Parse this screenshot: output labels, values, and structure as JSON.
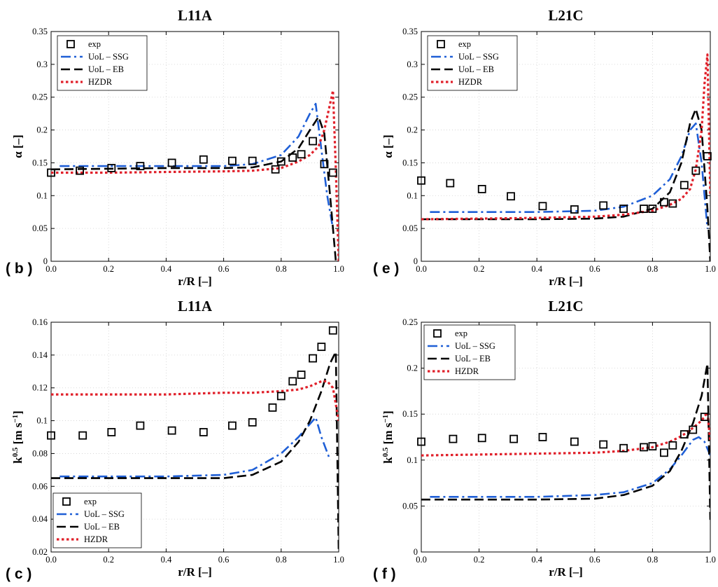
{
  "colors": {
    "exp": "#000000",
    "ssg": "#1f5fd6",
    "eb": "#000000",
    "hzdr": "#e0202a"
  },
  "chart_data": [
    {
      "type": "line",
      "panel": "(b)",
      "title": "L11A",
      "xlabel": "r/R [–]",
      "ylabel": "α [–]",
      "xlim": [
        0,
        1
      ],
      "ylim": [
        0,
        0.35
      ],
      "xticks": [
        "0.0",
        "0.2",
        "0.4",
        "0.6",
        "0.8",
        "1.0"
      ],
      "yticks": [
        "0",
        "0.05",
        "0.1",
        "0.15",
        "0.2",
        "0.25",
        "0.3",
        "0.35"
      ],
      "legend_pos": "top-left",
      "series": [
        {
          "name": "exp",
          "style": "square",
          "x": [
            0.0,
            0.1,
            0.21,
            0.31,
            0.42,
            0.53,
            0.63,
            0.7,
            0.78,
            0.8,
            0.84,
            0.87,
            0.91,
            0.95,
            0.98
          ],
          "y": [
            0.135,
            0.138,
            0.142,
            0.145,
            0.15,
            0.155,
            0.153,
            0.153,
            0.14,
            0.152,
            0.158,
            0.163,
            0.183,
            0.148,
            0.135
          ]
        },
        {
          "name": "UoL – SSG",
          "style": "dashdot",
          "x": [
            0.03,
            0.2,
            0.4,
            0.6,
            0.7,
            0.8,
            0.86,
            0.9,
            0.92,
            0.94,
            0.96,
            0.98
          ],
          "y": [
            0.145,
            0.145,
            0.145,
            0.145,
            0.148,
            0.162,
            0.19,
            0.225,
            0.24,
            0.17,
            0.1,
            0.05
          ]
        },
        {
          "name": "UoL – EB",
          "style": "dashed",
          "x": [
            0.0,
            0.2,
            0.4,
            0.6,
            0.7,
            0.8,
            0.86,
            0.9,
            0.93,
            0.95,
            0.97,
            0.99
          ],
          "y": [
            0.14,
            0.141,
            0.142,
            0.142,
            0.143,
            0.152,
            0.172,
            0.2,
            0.22,
            0.195,
            0.1,
            0.0
          ]
        },
        {
          "name": "HZDR",
          "style": "dotted",
          "x": [
            0.0,
            0.2,
            0.4,
            0.6,
            0.7,
            0.8,
            0.86,
            0.9,
            0.93,
            0.95,
            0.97,
            0.98,
            0.99,
            1.0
          ],
          "y": [
            0.135,
            0.135,
            0.136,
            0.137,
            0.138,
            0.142,
            0.152,
            0.162,
            0.175,
            0.2,
            0.24,
            0.26,
            0.14,
            0.0
          ]
        }
      ]
    },
    {
      "type": "line",
      "panel": "(e)",
      "title": "L21C",
      "xlabel": "r/R [–]",
      "ylabel": "α [–]",
      "xlim": [
        0,
        1
      ],
      "ylim": [
        0,
        0.35
      ],
      "xticks": [
        "0.0",
        "0.2",
        "0.4",
        "0.6",
        "0.8",
        "1.0"
      ],
      "yticks": [
        "0",
        "0.05",
        "0.1",
        "0.15",
        "0.2",
        "0.25",
        "0.3",
        "0.35"
      ],
      "legend_pos": "top-left",
      "series": [
        {
          "name": "exp",
          "style": "square",
          "x": [
            0.0,
            0.1,
            0.21,
            0.31,
            0.42,
            0.53,
            0.63,
            0.7,
            0.77,
            0.8,
            0.84,
            0.87,
            0.91,
            0.95,
            0.99
          ],
          "y": [
            0.123,
            0.119,
            0.11,
            0.099,
            0.084,
            0.079,
            0.085,
            0.08,
            0.08,
            0.08,
            0.09,
            0.088,
            0.116,
            0.138,
            0.16
          ]
        },
        {
          "name": "UoL – SSG",
          "style": "dashdot",
          "x": [
            0.03,
            0.2,
            0.4,
            0.6,
            0.7,
            0.8,
            0.86,
            0.9,
            0.93,
            0.95,
            0.97,
            0.99
          ],
          "y": [
            0.075,
            0.075,
            0.075,
            0.077,
            0.083,
            0.1,
            0.125,
            0.16,
            0.2,
            0.21,
            0.15,
            0.05
          ]
        },
        {
          "name": "UoL – EB",
          "style": "dashed",
          "x": [
            0.0,
            0.2,
            0.4,
            0.6,
            0.7,
            0.8,
            0.86,
            0.9,
            0.93,
            0.95,
            0.97,
            0.99,
            1.0
          ],
          "y": [
            0.064,
            0.064,
            0.064,
            0.065,
            0.068,
            0.08,
            0.105,
            0.15,
            0.21,
            0.232,
            0.2,
            0.08,
            0.0
          ]
        },
        {
          "name": "HZDR",
          "style": "dotted",
          "x": [
            0.0,
            0.2,
            0.4,
            0.6,
            0.7,
            0.8,
            0.86,
            0.9,
            0.93,
            0.95,
            0.97,
            0.98,
            0.99,
            1.0
          ],
          "y": [
            0.064,
            0.065,
            0.066,
            0.068,
            0.071,
            0.077,
            0.086,
            0.095,
            0.11,
            0.14,
            0.2,
            0.27,
            0.315,
            0.1
          ]
        }
      ]
    },
    {
      "type": "line",
      "panel": "(c)",
      "title": "L11A",
      "xlabel": "r/R [–]",
      "ylabel": "k^0.5 [m s^-1]",
      "ylabel_parts": {
        "base": "k",
        "exp1": "0.5",
        "unit": "[m s",
        "exp2": "−1",
        "close": "]"
      },
      "xlim": [
        0,
        1
      ],
      "ylim": [
        0.02,
        0.16
      ],
      "xticks": [
        "0.0",
        "0.2",
        "0.4",
        "0.6",
        "0.8",
        "1.0"
      ],
      "yticks": [
        "0.02",
        "0.04",
        "0.06",
        "0.08",
        "0.1",
        "0.12",
        "0.14",
        "0.16"
      ],
      "legend_pos": "bottom-left",
      "series": [
        {
          "name": "exp",
          "style": "square",
          "x": [
            0.0,
            0.11,
            0.21,
            0.31,
            0.42,
            0.53,
            0.63,
            0.7,
            0.77,
            0.8,
            0.84,
            0.87,
            0.91,
            0.94,
            0.98
          ],
          "y": [
            0.091,
            0.091,
            0.093,
            0.097,
            0.094,
            0.093,
            0.097,
            0.099,
            0.108,
            0.115,
            0.124,
            0.128,
            0.138,
            0.145,
            0.155
          ]
        },
        {
          "name": "UoL – SSG",
          "style": "dashdot",
          "x": [
            0.03,
            0.2,
            0.4,
            0.6,
            0.7,
            0.8,
            0.86,
            0.9,
            0.92,
            0.94,
            0.97
          ],
          "y": [
            0.066,
            0.066,
            0.066,
            0.067,
            0.07,
            0.08,
            0.09,
            0.098,
            0.102,
            0.09,
            0.076
          ]
        },
        {
          "name": "UoL – EB",
          "style": "dashed",
          "x": [
            0.0,
            0.2,
            0.4,
            0.6,
            0.7,
            0.8,
            0.86,
            0.9,
            0.94,
            0.97,
            0.99,
            1.0
          ],
          "y": [
            0.065,
            0.065,
            0.065,
            0.065,
            0.067,
            0.075,
            0.087,
            0.1,
            0.118,
            0.135,
            0.142,
            0.02
          ]
        },
        {
          "name": "HZDR",
          "style": "dotted",
          "x": [
            0.0,
            0.2,
            0.4,
            0.6,
            0.7,
            0.8,
            0.86,
            0.9,
            0.94,
            0.96,
            0.98,
            1.0
          ],
          "y": [
            0.116,
            0.116,
            0.116,
            0.117,
            0.117,
            0.118,
            0.119,
            0.121,
            0.124,
            0.124,
            0.12,
            0.1
          ]
        }
      ]
    },
    {
      "type": "line",
      "panel": "(f)",
      "title": "L21C",
      "xlabel": "r/R [–]",
      "ylabel": "k^0.5 [m s^-1]",
      "ylabel_parts": {
        "base": "k",
        "exp1": "0.5",
        "unit": "[m s",
        "exp2": "−1",
        "close": "]"
      },
      "xlim": [
        0,
        1
      ],
      "ylim": [
        0,
        0.25
      ],
      "xticks": [
        "0.0",
        "0.2",
        "0.4",
        "0.6",
        "0.8",
        "1.0"
      ],
      "yticks": [
        "0",
        "0.05",
        "0.1",
        "0.15",
        "0.2",
        "0.25"
      ],
      "legend_pos": "top-left",
      "series": [
        {
          "name": "exp",
          "style": "square",
          "x": [
            0.0,
            0.11,
            0.21,
            0.32,
            0.42,
            0.53,
            0.63,
            0.7,
            0.77,
            0.8,
            0.84,
            0.87,
            0.91,
            0.94,
            0.98
          ],
          "y": [
            0.12,
            0.123,
            0.124,
            0.123,
            0.125,
            0.12,
            0.117,
            0.113,
            0.114,
            0.115,
            0.108,
            0.116,
            0.128,
            0.133,
            0.147
          ]
        },
        {
          "name": "UoL – SSG",
          "style": "dashdot",
          "x": [
            0.03,
            0.2,
            0.4,
            0.6,
            0.7,
            0.8,
            0.86,
            0.9,
            0.94,
            0.96,
            0.98,
            1.0
          ],
          "y": [
            0.06,
            0.06,
            0.06,
            0.062,
            0.065,
            0.075,
            0.09,
            0.105,
            0.122,
            0.125,
            0.12,
            0.105
          ]
        },
        {
          "name": "UoL – EB",
          "style": "dashed",
          "x": [
            0.0,
            0.2,
            0.4,
            0.6,
            0.7,
            0.8,
            0.86,
            0.9,
            0.94,
            0.97,
            0.99,
            1.0
          ],
          "y": [
            0.057,
            0.057,
            0.057,
            0.058,
            0.062,
            0.072,
            0.088,
            0.11,
            0.14,
            0.17,
            0.205,
            0.035
          ]
        },
        {
          "name": "HZDR",
          "style": "dotted",
          "x": [
            0.0,
            0.2,
            0.4,
            0.6,
            0.7,
            0.8,
            0.86,
            0.9,
            0.94,
            0.97,
            0.99,
            1.0
          ],
          "y": [
            0.105,
            0.106,
            0.107,
            0.108,
            0.11,
            0.114,
            0.12,
            0.126,
            0.135,
            0.143,
            0.152,
            0.12
          ]
        }
      ]
    }
  ]
}
